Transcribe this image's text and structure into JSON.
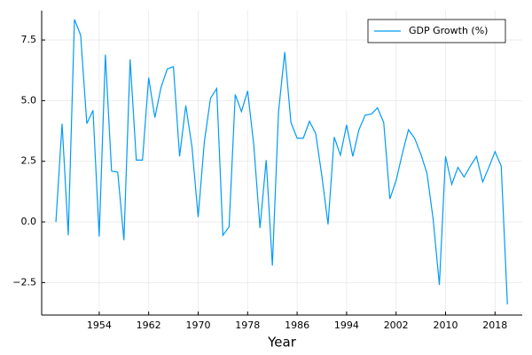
{
  "chart_data": {
    "type": "line",
    "x_label": "Year",
    "x": [
      1947,
      1948,
      1949,
      1950,
      1951,
      1952,
      1953,
      1954,
      1955,
      1956,
      1957,
      1958,
      1959,
      1960,
      1961,
      1962,
      1963,
      1964,
      1965,
      1966,
      1967,
      1968,
      1969,
      1970,
      1971,
      1972,
      1973,
      1974,
      1975,
      1976,
      1977,
      1978,
      1979,
      1980,
      1981,
      1982,
      1983,
      1984,
      1985,
      1986,
      1987,
      1988,
      1989,
      1990,
      1991,
      1992,
      1993,
      1994,
      1995,
      1996,
      1997,
      1998,
      1999,
      2000,
      2001,
      2002,
      2003,
      2004,
      2005,
      2006,
      2007,
      2008,
      2009,
      2010,
      2011,
      2012,
      2013,
      2014,
      2015,
      2016,
      2017,
      2018,
      2019,
      2020
    ],
    "series": [
      {
        "name": "GDP Growth (%)",
        "color": "#009af9",
        "values": [
          0.0,
          4.05,
          -0.55,
          8.35,
          7.7,
          4.05,
          4.6,
          -0.6,
          6.9,
          2.1,
          2.05,
          -0.75,
          6.7,
          2.55,
          2.55,
          5.95,
          4.3,
          5.55,
          6.3,
          6.4,
          2.7,
          4.8,
          3.1,
          0.2,
          3.3,
          5.1,
          5.5,
          -0.55,
          -0.2,
          5.25,
          4.55,
          5.4,
          3.15,
          -0.25,
          2.55,
          -1.8,
          4.55,
          7.0,
          4.1,
          3.45,
          3.45,
          4.15,
          3.65,
          1.9,
          -0.1,
          3.5,
          2.75,
          4.0,
          2.7,
          3.8,
          4.4,
          4.45,
          4.7,
          4.1,
          0.95,
          1.7,
          2.8,
          3.8,
          3.45,
          2.8,
          2.0,
          0.1,
          -2.6,
          2.7,
          1.55,
          2.25,
          1.85,
          2.3,
          2.7,
          1.65,
          2.25,
          2.9,
          2.3,
          -3.4
        ]
      }
    ],
    "xlim": [
      1944.7,
      2022.4
    ],
    "xticks": [
      1954,
      1962,
      1970,
      1978,
      1986,
      1994,
      2002,
      2010,
      2018
    ],
    "ylim": [
      -3.84,
      8.71
    ],
    "yticks": [
      {
        "value": -2.5,
        "label": "−2.5"
      },
      {
        "value": 0,
        "label": "0.0"
      },
      2.5,
      {
        "value": 5,
        "label": "5.0"
      },
      7.5
    ],
    "grid": true,
    "legend": "top-right"
  }
}
